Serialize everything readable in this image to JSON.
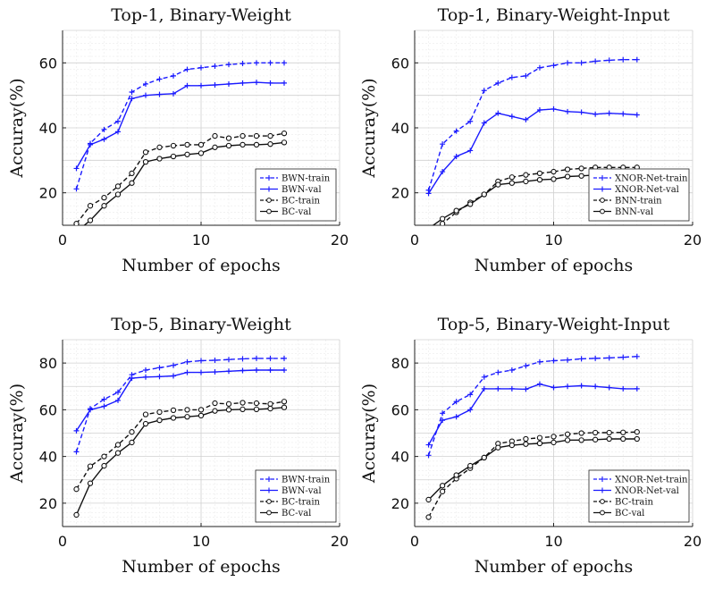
{
  "chart_data": [
    {
      "type": "line",
      "title": "Top-1, Binary-Weight",
      "xlabel": "Number of epochs",
      "ylabel": "Accuray(%)",
      "xlim": [
        0,
        20
      ],
      "ylim": [
        10,
        70
      ],
      "xticks": [
        0,
        10,
        20
      ],
      "yticks": [
        20,
        40,
        60
      ],
      "grid": true,
      "legend_position": "bottom-right",
      "x": [
        1,
        2,
        3,
        4,
        5,
        6,
        7,
        8,
        9,
        10,
        11,
        12,
        13,
        14,
        15,
        16
      ],
      "series": [
        {
          "name": "BWN-train",
          "color": "#1a1aff",
          "dash": "dashed",
          "marker": "plus",
          "values": [
            21.2,
            35.2,
            39.5,
            42.0,
            51.0,
            53.5,
            55.0,
            56.0,
            58.0,
            58.5,
            59.0,
            59.5,
            59.8,
            60.0,
            60.0,
            60.0
          ]
        },
        {
          "name": "BWN-val",
          "color": "#1a1aff",
          "dash": "solid",
          "marker": "plus",
          "values": [
            27.5,
            34.8,
            36.5,
            38.8,
            49.0,
            50.0,
            50.3,
            50.5,
            53.0,
            53.0,
            53.2,
            53.5,
            53.8,
            54.0,
            53.8,
            53.8
          ]
        },
        {
          "name": "BC-train",
          "color": "#111111",
          "dash": "dashed",
          "marker": "circle",
          "values": [
            10.5,
            16.0,
            18.5,
            22.0,
            26.0,
            32.5,
            34.0,
            34.5,
            34.8,
            34.8,
            37.5,
            36.8,
            37.5,
            37.5,
            37.5,
            38.3
          ]
        },
        {
          "name": "BC-val",
          "color": "#111111",
          "dash": "solid",
          "marker": "circle",
          "values": [
            8.0,
            11.5,
            16.0,
            19.5,
            23.0,
            29.5,
            30.5,
            31.2,
            31.8,
            32.2,
            34.0,
            34.5,
            34.8,
            34.8,
            35.0,
            35.5
          ]
        }
      ]
    },
    {
      "type": "line",
      "title": "Top-1, Binary-Weight-Input",
      "xlabel": "Number of epochs",
      "ylabel": "Accuray(%)",
      "xlim": [
        0,
        20
      ],
      "ylim": [
        10,
        70
      ],
      "xticks": [
        0,
        10,
        20
      ],
      "yticks": [
        20,
        40,
        60
      ],
      "grid": true,
      "legend_position": "bottom-right",
      "x": [
        1,
        2,
        3,
        4,
        5,
        6,
        7,
        8,
        9,
        10,
        11,
        12,
        13,
        14,
        15,
        16
      ],
      "series": [
        {
          "name": "XNOR-Net-train",
          "color": "#1a1aff",
          "dash": "dashed",
          "marker": "plus",
          "values": [
            20.8,
            35.0,
            39.0,
            42.0,
            51.5,
            53.8,
            55.5,
            56.0,
            58.5,
            59.2,
            60.0,
            60.0,
            60.5,
            60.8,
            61.0,
            61.0
          ]
        },
        {
          "name": "XNOR-Net-val",
          "color": "#1a1aff",
          "dash": "solid",
          "marker": "plus",
          "values": [
            19.8,
            26.5,
            31.2,
            33.0,
            41.5,
            44.5,
            43.5,
            42.5,
            45.5,
            45.8,
            45.0,
            44.8,
            44.2,
            44.5,
            44.3,
            44.0
          ]
        },
        {
          "name": "BNN-train",
          "color": "#111111",
          "dash": "dashed",
          "marker": "circle",
          "values": [
            8.0,
            10.5,
            14.0,
            17.0,
            19.5,
            23.5,
            24.8,
            25.5,
            26.0,
            26.5,
            27.2,
            27.5,
            27.8,
            27.8,
            27.8,
            27.8
          ]
        },
        {
          "name": "BNN-val",
          "color": "#111111",
          "dash": "solid",
          "marker": "circle",
          "values": [
            9.0,
            12.0,
            14.5,
            16.5,
            19.5,
            22.5,
            23.0,
            23.5,
            24.0,
            24.2,
            25.0,
            25.2,
            25.5,
            25.8,
            26.0,
            26.0
          ]
        }
      ]
    },
    {
      "type": "line",
      "title": "Top-5, Binary-Weight",
      "xlabel": "Number of epochs",
      "ylabel": "Accuray(%)",
      "xlim": [
        0,
        20
      ],
      "ylim": [
        10,
        90
      ],
      "xticks": [
        0,
        10,
        20
      ],
      "yticks": [
        20,
        40,
        60,
        80
      ],
      "grid": true,
      "legend_position": "bottom-right",
      "x": [
        1,
        2,
        3,
        4,
        5,
        6,
        7,
        8,
        9,
        10,
        11,
        12,
        13,
        14,
        15,
        16
      ],
      "series": [
        {
          "name": "BWN-train",
          "color": "#1a1aff",
          "dash": "dashed",
          "marker": "plus",
          "values": [
            42.0,
            60.5,
            64.5,
            67.5,
            75.0,
            77.0,
            78.0,
            79.0,
            80.5,
            81.0,
            81.2,
            81.5,
            81.8,
            82.0,
            82.0,
            82.0
          ]
        },
        {
          "name": "BWN-val",
          "color": "#1a1aff",
          "dash": "solid",
          "marker": "plus",
          "values": [
            51.0,
            60.0,
            61.5,
            64.0,
            73.5,
            74.0,
            74.2,
            74.5,
            76.0,
            76.0,
            76.2,
            76.5,
            76.8,
            77.0,
            77.0,
            77.0
          ]
        },
        {
          "name": "BC-train",
          "color": "#111111",
          "dash": "dashed",
          "marker": "circle",
          "values": [
            26.0,
            35.8,
            40.0,
            45.0,
            50.5,
            58.0,
            59.0,
            59.8,
            60.0,
            60.0,
            62.8,
            62.5,
            63.0,
            62.8,
            62.5,
            63.5
          ]
        },
        {
          "name": "BC-val",
          "color": "#111111",
          "dash": "solid",
          "marker": "circle",
          "values": [
            15.0,
            28.5,
            36.0,
            41.5,
            46.0,
            54.0,
            55.5,
            56.5,
            57.0,
            57.5,
            59.5,
            60.0,
            60.2,
            60.2,
            60.5,
            61.0
          ]
        }
      ]
    },
    {
      "type": "line",
      "title": "Top-5, Binary-Weight-Input",
      "xlabel": "Number of epochs",
      "ylabel": "Accuray(%)",
      "xlim": [
        0,
        20
      ],
      "ylim": [
        10,
        90
      ],
      "xticks": [
        0,
        10,
        20
      ],
      "yticks": [
        20,
        40,
        60,
        80
      ],
      "grid": true,
      "legend_position": "bottom-right",
      "x": [
        1,
        2,
        3,
        4,
        5,
        6,
        7,
        8,
        9,
        10,
        11,
        12,
        13,
        14,
        15,
        16
      ],
      "series": [
        {
          "name": "XNOR-Net-train",
          "color": "#1a1aff",
          "dash": "dashed",
          "marker": "plus",
          "values": [
            40.5,
            58.5,
            63.5,
            66.5,
            74.0,
            76.0,
            77.0,
            78.8,
            80.5,
            81.0,
            81.3,
            81.8,
            82.0,
            82.2,
            82.5,
            82.8
          ]
        },
        {
          "name": "XNOR-Net-val",
          "color": "#1a1aff",
          "dash": "solid",
          "marker": "plus",
          "values": [
            45.0,
            55.5,
            57.0,
            60.0,
            69.0,
            69.0,
            69.0,
            68.8,
            71.0,
            69.5,
            70.0,
            70.3,
            70.0,
            69.5,
            69.0,
            69.0
          ]
        },
        {
          "name": "BC-train",
          "color": "#111111",
          "dash": "dashed",
          "marker": "circle",
          "values": [
            14.0,
            25.0,
            30.5,
            35.0,
            39.5,
            45.5,
            46.5,
            47.5,
            48.0,
            48.5,
            49.5,
            50.0,
            50.2,
            50.2,
            50.3,
            50.5
          ]
        },
        {
          "name": "BC-val",
          "color": "#111111",
          "dash": "solid",
          "marker": "circle",
          "values": [
            21.5,
            27.5,
            32.0,
            36.0,
            39.5,
            43.8,
            44.8,
            45.3,
            45.6,
            46.0,
            47.0,
            47.0,
            47.2,
            47.5,
            47.5,
            47.5
          ]
        }
      ]
    }
  ]
}
